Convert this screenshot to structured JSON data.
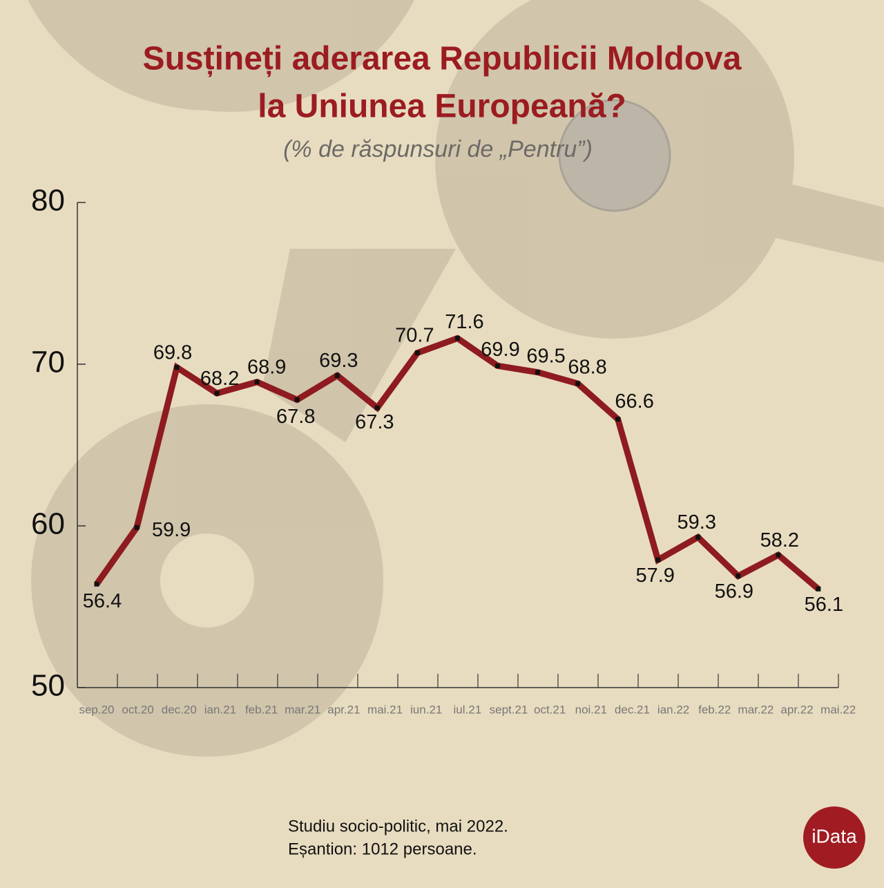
{
  "chart_data": {
    "type": "line",
    "title": "Susțineți aderarea Republicii Moldova",
    "title_line2": "la Uniunea Europeană?",
    "subtitle": "(% de răspunsuri de „Pentru”)",
    "categories": [
      "sep.20",
      "oct.20",
      "dec.20",
      "ian.21",
      "feb.21",
      "mar.21",
      "apr.21",
      "mai.21",
      "iun.21",
      "iul.21",
      "sept.21",
      "oct.21",
      "noi.21",
      "dec.21",
      "ian.22",
      "feb.22",
      "mar.22",
      "apr.22",
      "mai.22"
    ],
    "series": [
      {
        "name": "Pentru",
        "color": "#8e1b1f",
        "values": [
          56.4,
          59.9,
          69.8,
          68.2,
          68.9,
          67.8,
          69.3,
          67.3,
          70.7,
          71.6,
          69.9,
          69.5,
          68.8,
          66.6,
          57.9,
          59.3,
          56.9,
          58.2,
          56.1
        ]
      }
    ],
    "ylim": [
      50,
      80
    ],
    "yticks": [
      50,
      60,
      70,
      80
    ],
    "footnote": [
      "Studiu socio-politic, mai 2022.",
      "Eșantion: 1012 persoane."
    ],
    "logo": "iData"
  }
}
